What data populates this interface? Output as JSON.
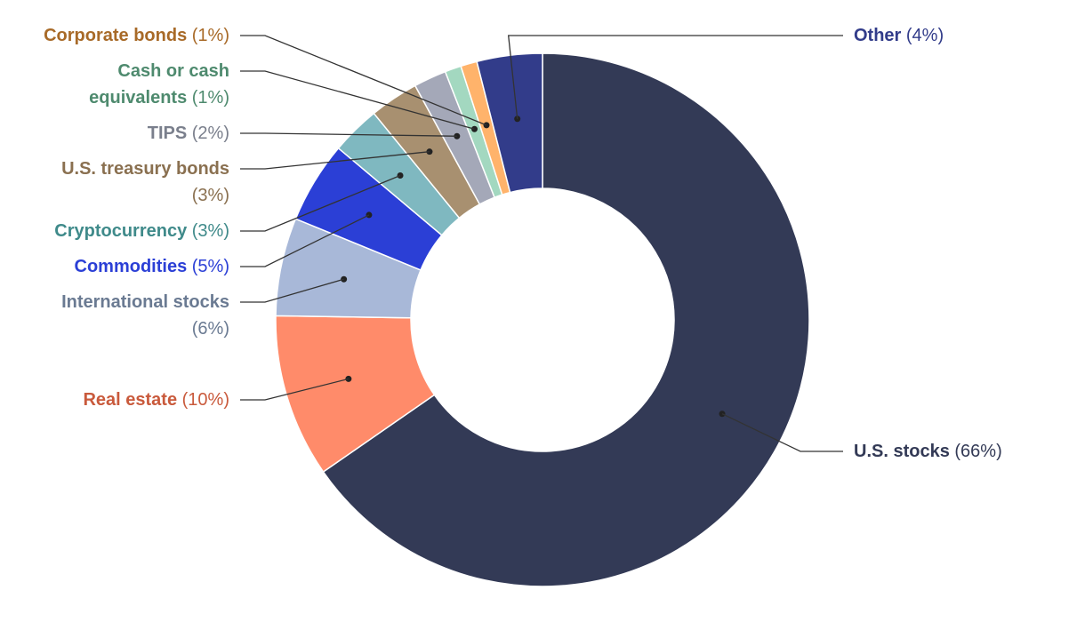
{
  "chart_data": {
    "type": "pie",
    "donut": true,
    "slices": [
      {
        "name": "U.S. stocks",
        "pct_label": "(66%)",
        "value": 66,
        "color": "#333a56",
        "label_color": "#333a56"
      },
      {
        "name": "Real estate",
        "pct_label": "(10%)",
        "value": 10,
        "color": "#ff8b6a",
        "label_color": "#c95a3c"
      },
      {
        "name": "International stocks",
        "pct_label": "(6%)",
        "value": 6,
        "color": "#a8b8d8",
        "label_color": "#6a7a92"
      },
      {
        "name": "Commodities",
        "pct_label": "(5%)",
        "value": 5,
        "color": "#2b3fd6",
        "label_color": "#2b3fd6"
      },
      {
        "name": "Cryptocurrency",
        "pct_label": "(3%)",
        "value": 3,
        "color": "#7fb8c0",
        "label_color": "#3f8a8a"
      },
      {
        "name": "U.S. treasury bonds",
        "pct_label": "(3%)",
        "value": 3,
        "color": "#a89070",
        "label_color": "#8a7050"
      },
      {
        "name": "TIPS",
        "pct_label": "(2%)",
        "value": 2,
        "color": "#a4a8b8",
        "label_color": "#7a7f8c"
      },
      {
        "name": "Cash or cash equivalents",
        "pct_label": "(1%)",
        "value": 1,
        "color": "#a3d8c0",
        "label_color": "#4e8a6e"
      },
      {
        "name": "Corporate bonds",
        "pct_label": "(1%)",
        "value": 1,
        "color": "#ffb36b",
        "label_color": "#a86a28"
      },
      {
        "name": "Other",
        "pct_label": "(4%)",
        "value": 4,
        "color": "#323c8a",
        "label_color": "#323c8a"
      }
    ]
  }
}
